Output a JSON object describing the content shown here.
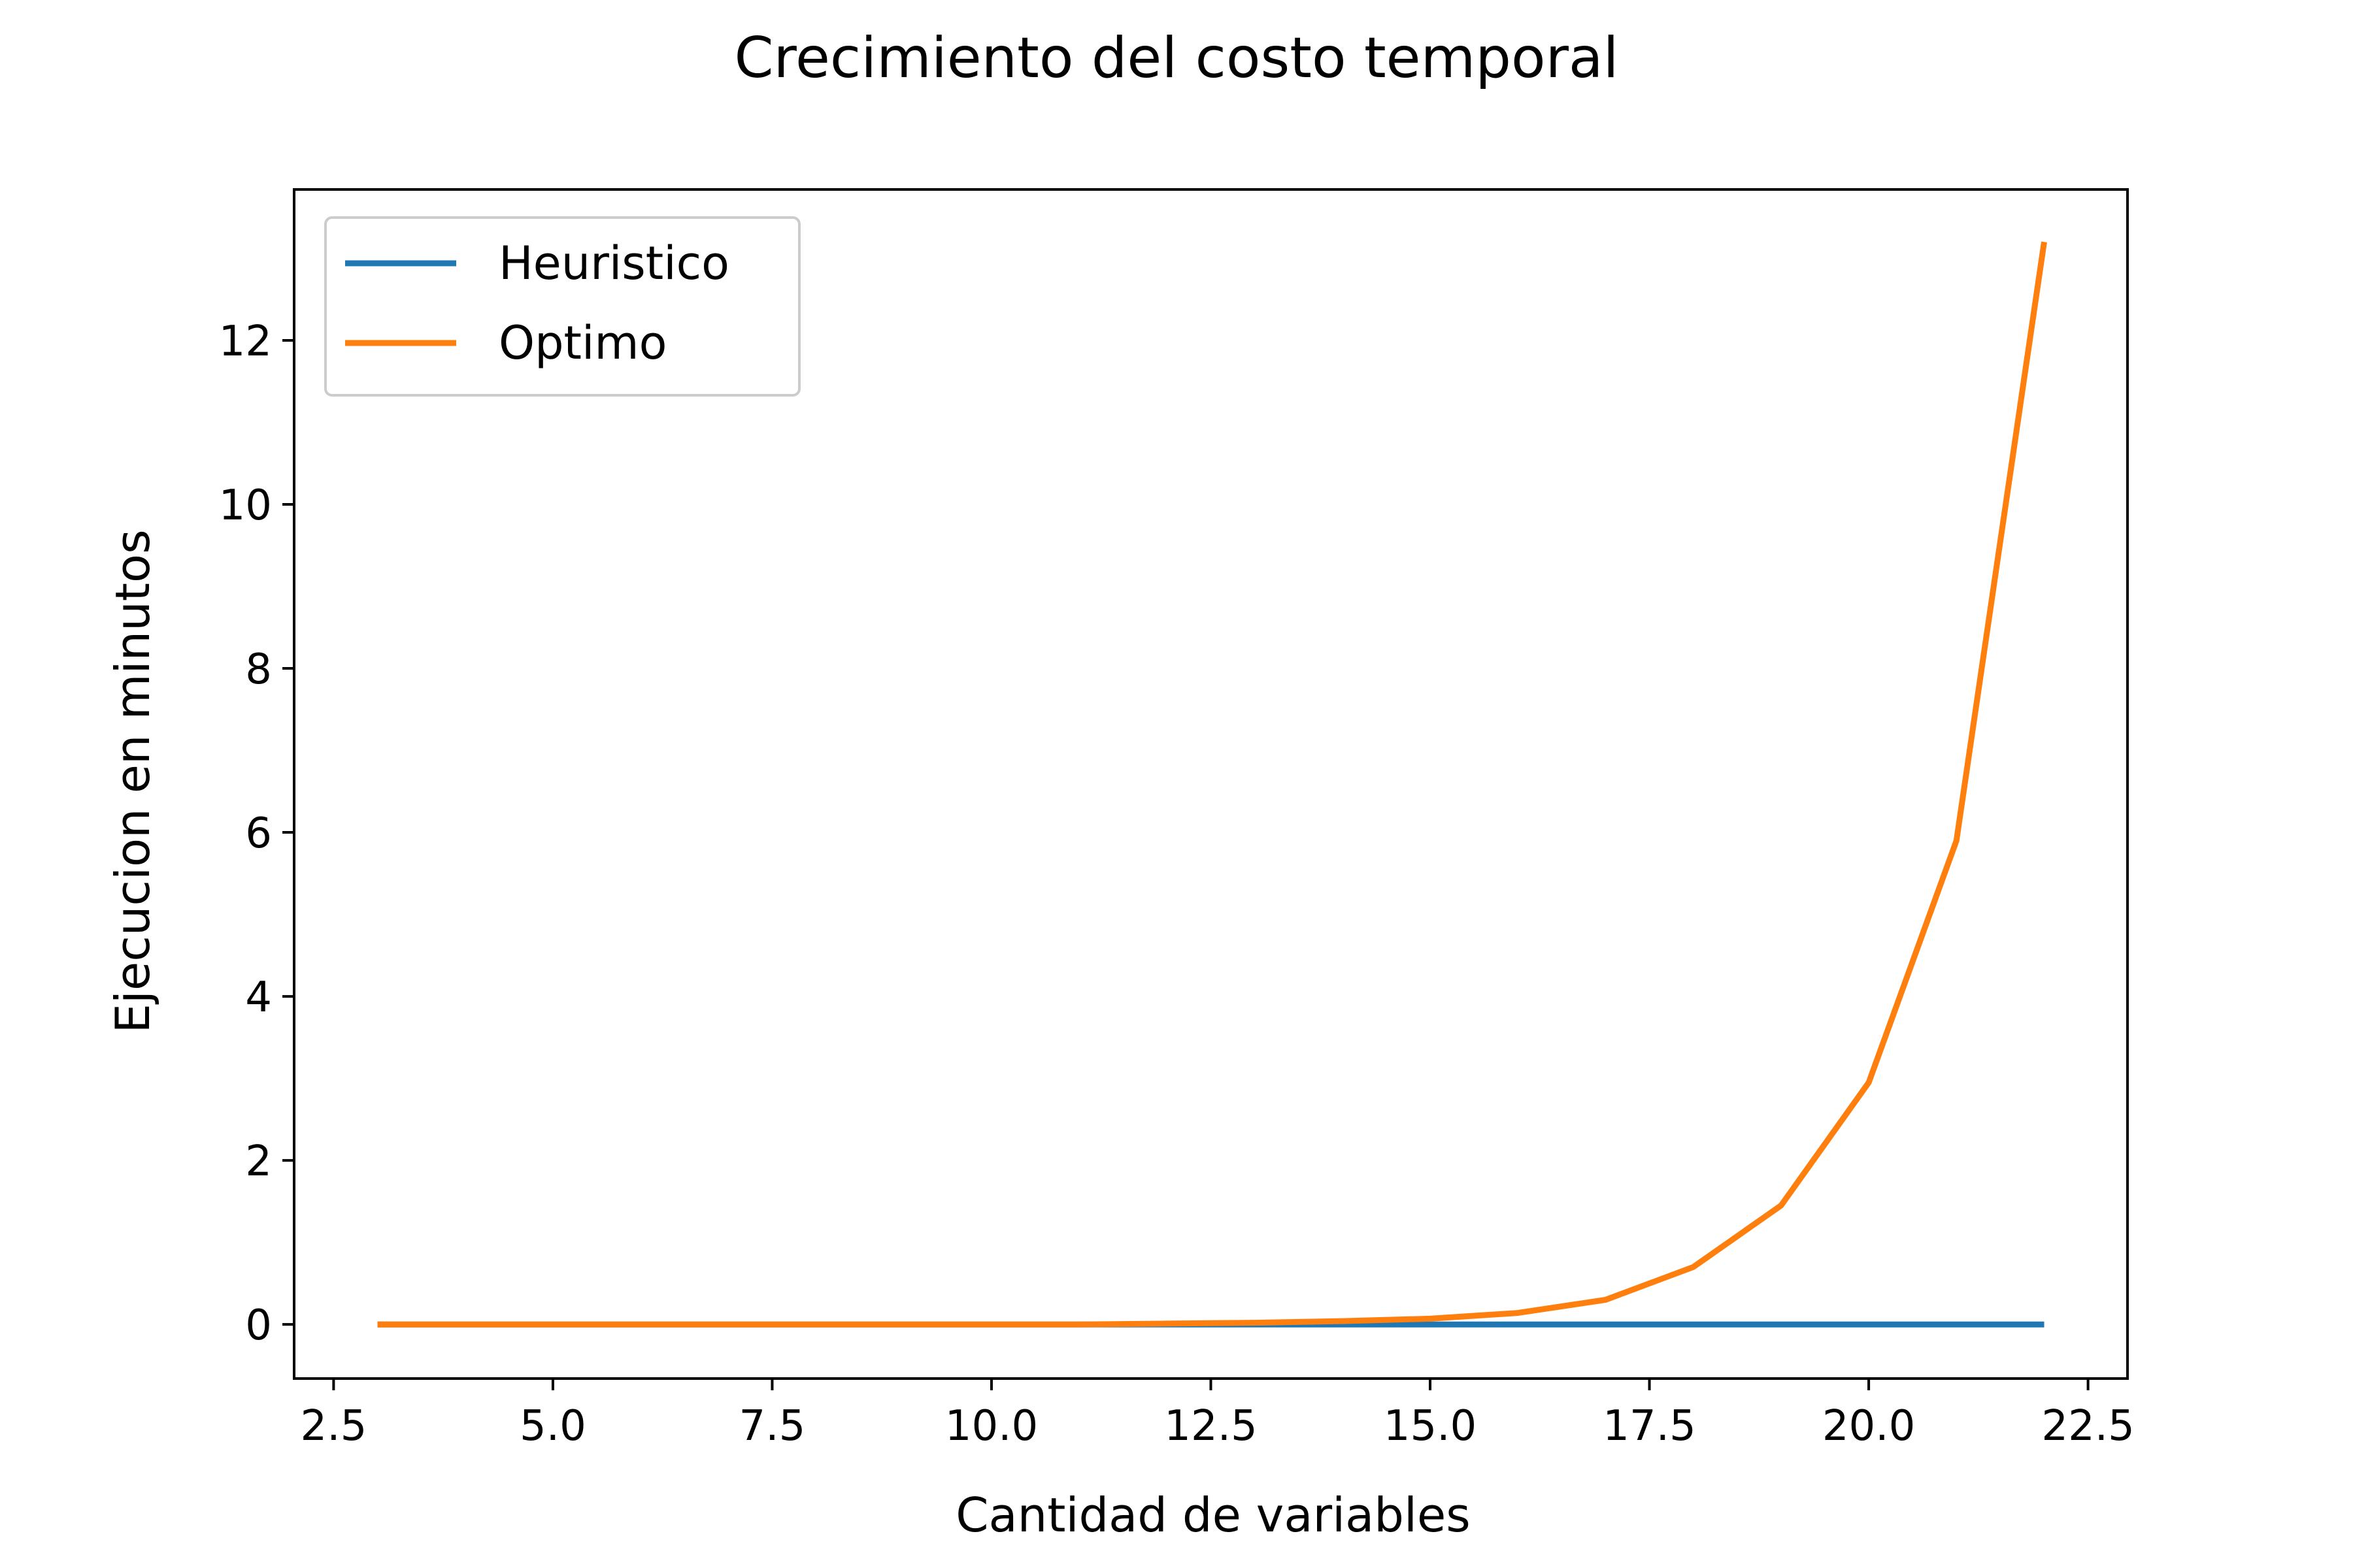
{
  "chart_data": {
    "type": "line",
    "title": "Crecimiento del costo temporal",
    "xlabel": "Cantidad de variables",
    "ylabel": "Ejecucion en minutos",
    "xlim": [
      2.05,
      22.95
    ],
    "ylim": [
      -0.66,
      13.84
    ],
    "xticks": [
      2.5,
      5.0,
      7.5,
      10.0,
      12.5,
      15.0,
      17.5,
      20.0,
      22.5
    ],
    "xtick_labels": [
      "2.5",
      "5.0",
      "7.5",
      "10.0",
      "12.5",
      "15.0",
      "17.5",
      "20.0",
      "22.5"
    ],
    "yticks": [
      0,
      2,
      4,
      6,
      8,
      10,
      12
    ],
    "ytick_labels": [
      "0",
      "2",
      "4",
      "6",
      "8",
      "10",
      "12"
    ],
    "grid": false,
    "legend_position": "top-left",
    "x": [
      3,
      4,
      5,
      6,
      7,
      8,
      9,
      10,
      11,
      12,
      13,
      14,
      15,
      16,
      17,
      18,
      19,
      20,
      21,
      22
    ],
    "series": [
      {
        "name": "Heuristico",
        "color": "#1f77b4",
        "values": [
          0,
          0,
          0,
          0,
          0,
          0,
          0,
          0,
          0,
          0,
          0,
          0,
          0,
          0,
          0,
          0,
          0,
          0,
          0,
          0
        ]
      },
      {
        "name": "Optimo",
        "color": "#ff7f0e",
        "values": [
          0,
          0,
          0,
          0,
          0,
          0,
          0,
          0,
          0,
          0.01,
          0.02,
          0.04,
          0.07,
          0.14,
          0.3,
          0.7,
          1.45,
          2.95,
          5.9,
          13.2
        ]
      }
    ]
  }
}
